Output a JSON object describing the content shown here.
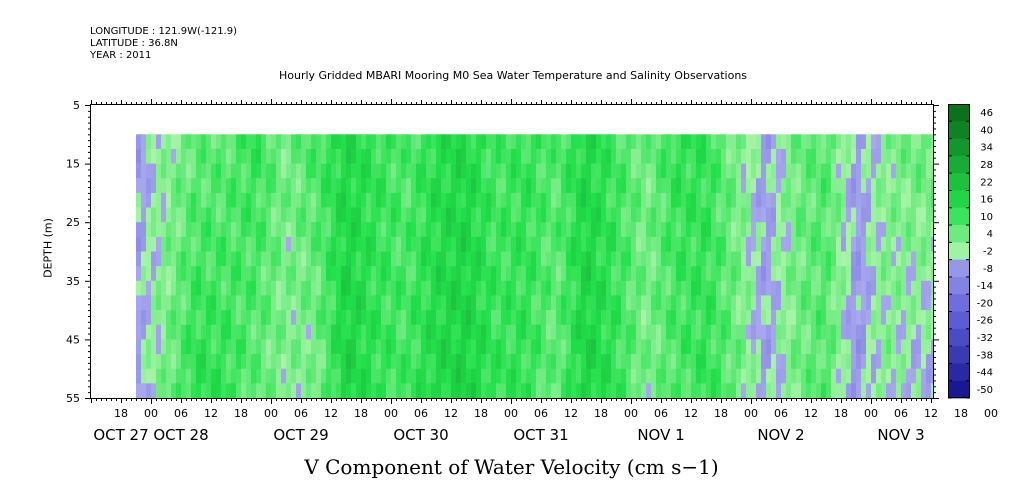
{
  "meta": {
    "longitude": "LONGITUDE : 121.9W(-121.9)",
    "latitude": "LATITUDE : 36.8N",
    "year": "YEAR : 2011"
  },
  "chart_data": {
    "type": "heatmap",
    "title": "Hourly Gridded MBARI Mooring M0 Sea Water Temperature and Salinity Observations",
    "xlabel": "V Component of Water Velocity (cm s−1)",
    "ylabel": "DEPTH (m)",
    "colors": {
      "negative_light": "#a8a8ee",
      "negative_mid": "#6464dc",
      "negative_dark": "#10108a",
      "positive_light": "#a8f4a8",
      "positive_mid": "#22e04a",
      "positive_dark": "#0a6a1a",
      "missing": "#ffffff"
    },
    "y_axis": {
      "ylim": [
        5,
        55
      ],
      "inverted": true,
      "ticks": [
        5,
        15,
        25,
        35,
        45,
        55
      ],
      "data_depth_range": [
        10,
        55
      ]
    },
    "x_axis": {
      "start": "2011-10-27 12:00",
      "end": "2011-11-03 16:00",
      "data_start": "2011-10-27 21:00",
      "hour_tick_labels": [
        "18",
        "00",
        "06",
        "12",
        "18",
        "00",
        "06",
        "12",
        "18",
        "00",
        "06",
        "12",
        "18",
        "00",
        "06",
        "12",
        "18",
        "00",
        "06",
        "12",
        "18",
        "00",
        "06",
        "12",
        "18",
        "00",
        "06",
        "12",
        "18",
        "00",
        "06",
        "12"
      ],
      "hour_ticks": [
        {
          "day": 0,
          "hour": 18
        },
        {
          "day": 1,
          "hour": 0
        },
        {
          "day": 1,
          "hour": 6
        },
        {
          "day": 1,
          "hour": 12
        },
        {
          "day": 1,
          "hour": 18
        },
        {
          "day": 2,
          "hour": 0
        },
        {
          "day": 2,
          "hour": 6
        },
        {
          "day": 2,
          "hour": 12
        },
        {
          "day": 2,
          "hour": 18
        },
        {
          "day": 3,
          "hour": 0
        },
        {
          "day": 3,
          "hour": 6
        },
        {
          "day": 3,
          "hour": 12
        },
        {
          "day": 3,
          "hour": 18
        },
        {
          "day": 4,
          "hour": 0
        },
        {
          "day": 4,
          "hour": 6
        },
        {
          "day": 4,
          "hour": 12
        },
        {
          "day": 4,
          "hour": 18
        },
        {
          "day": 5,
          "hour": 0
        },
        {
          "day": 5,
          "hour": 6
        },
        {
          "day": 5,
          "hour": 12
        },
        {
          "day": 5,
          "hour": 18
        },
        {
          "day": 6,
          "hour": 0
        },
        {
          "day": 6,
          "hour": 6
        },
        {
          "day": 6,
          "hour": 12
        },
        {
          "day": 6,
          "hour": 18
        },
        {
          "day": 7,
          "hour": 0
        },
        {
          "day": 7,
          "hour": 6
        },
        {
          "day": 7,
          "hour": 12
        },
        {
          "day": 7,
          "hour": 18
        },
        {
          "day": 8,
          "hour": 0
        },
        {
          "day": 8,
          "hour": 6
        },
        {
          "day": 8,
          "hour": 12
        }
      ],
      "date_labels": [
        {
          "text": "OCT 27",
          "day": 0,
          "hour": 18
        },
        {
          "text": "OCT 28",
          "day": 1,
          "hour": 6
        },
        {
          "text": "OCT 29",
          "day": 2,
          "hour": 6
        },
        {
          "text": "OCT 30",
          "day": 3,
          "hour": 6
        },
        {
          "text": "OCT 31",
          "day": 4,
          "hour": 6
        },
        {
          "text": "NOV  1",
          "day": 5,
          "hour": 6
        },
        {
          "text": "NOV  2",
          "day": 6,
          "hour": 6
        },
        {
          "text": "NOV  3",
          "day": 7,
          "hour": 6
        }
      ]
    },
    "colorbar": {
      "levels": [
        46,
        40,
        34,
        28,
        22,
        16,
        10,
        4,
        -2,
        -8,
        -14,
        -20,
        -26,
        -32,
        -38,
        -44,
        -50
      ],
      "range": [
        -50,
        50
      ]
    },
    "v_profile_cm_s": {
      "depths_m": [
        10,
        55
      ],
      "anchor_hours": [
        9,
        15,
        21,
        27,
        33,
        39,
        45,
        51,
        57,
        63,
        69,
        75,
        81,
        87,
        93,
        99,
        105,
        111,
        117,
        123,
        129,
        135,
        141,
        147,
        153,
        159,
        165,
        171,
        177
      ],
      "surface_values": [
        4,
        -3,
        -4,
        3,
        8,
        9,
        14,
        6,
        12,
        18,
        14,
        10,
        16,
        18,
        11,
        14,
        10,
        18,
        12,
        6,
        15,
        14,
        5,
        -3,
        7,
        10,
        -3,
        4,
        8
      ],
      "bottom_values": [
        -6,
        -8,
        -2,
        6,
        16,
        14,
        8,
        4,
        4,
        20,
        14,
        12,
        18,
        20,
        14,
        14,
        7,
        20,
        14,
        5,
        10,
        14,
        8,
        -3,
        6,
        10,
        -5,
        4,
        -2
      ]
    }
  }
}
